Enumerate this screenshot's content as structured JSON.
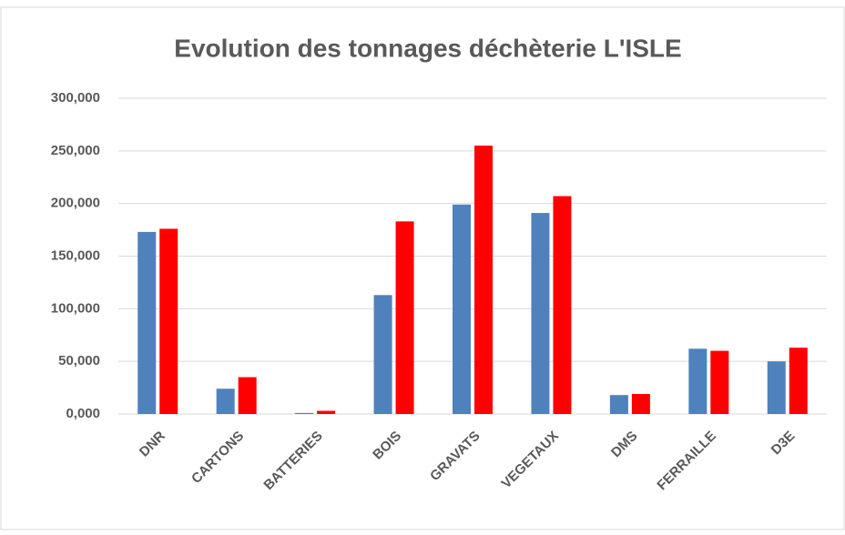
{
  "chart_data": {
    "type": "bar",
    "title": "Evolution des tonnages déchèterie L'ISLE",
    "categories": [
      "DNR",
      "CARTONS",
      "BATTERIES",
      "BOIS",
      "GRAVATS",
      "VEGETAUX",
      "DMS",
      "FERRAILLE",
      "D3E"
    ],
    "series": [
      {
        "color": "#4f81bd",
        "values": [
          173,
          24,
          1,
          113,
          199,
          191,
          18,
          62,
          50
        ]
      },
      {
        "color": "#ff0000",
        "values": [
          176,
          35,
          3,
          183,
          255,
          207,
          19,
          60,
          63
        ]
      }
    ],
    "ylim": [
      0,
      300
    ],
    "yticks": [
      {
        "value": 0,
        "label": "0,000"
      },
      {
        "value": 50,
        "label": "50,000"
      },
      {
        "value": 100,
        "label": "100,000"
      },
      {
        "value": 150,
        "label": "150,000"
      },
      {
        "value": 200,
        "label": "200,000"
      },
      {
        "value": 250,
        "label": "250,000"
      },
      {
        "value": 300,
        "label": "300,000"
      }
    ],
    "grid": true
  }
}
